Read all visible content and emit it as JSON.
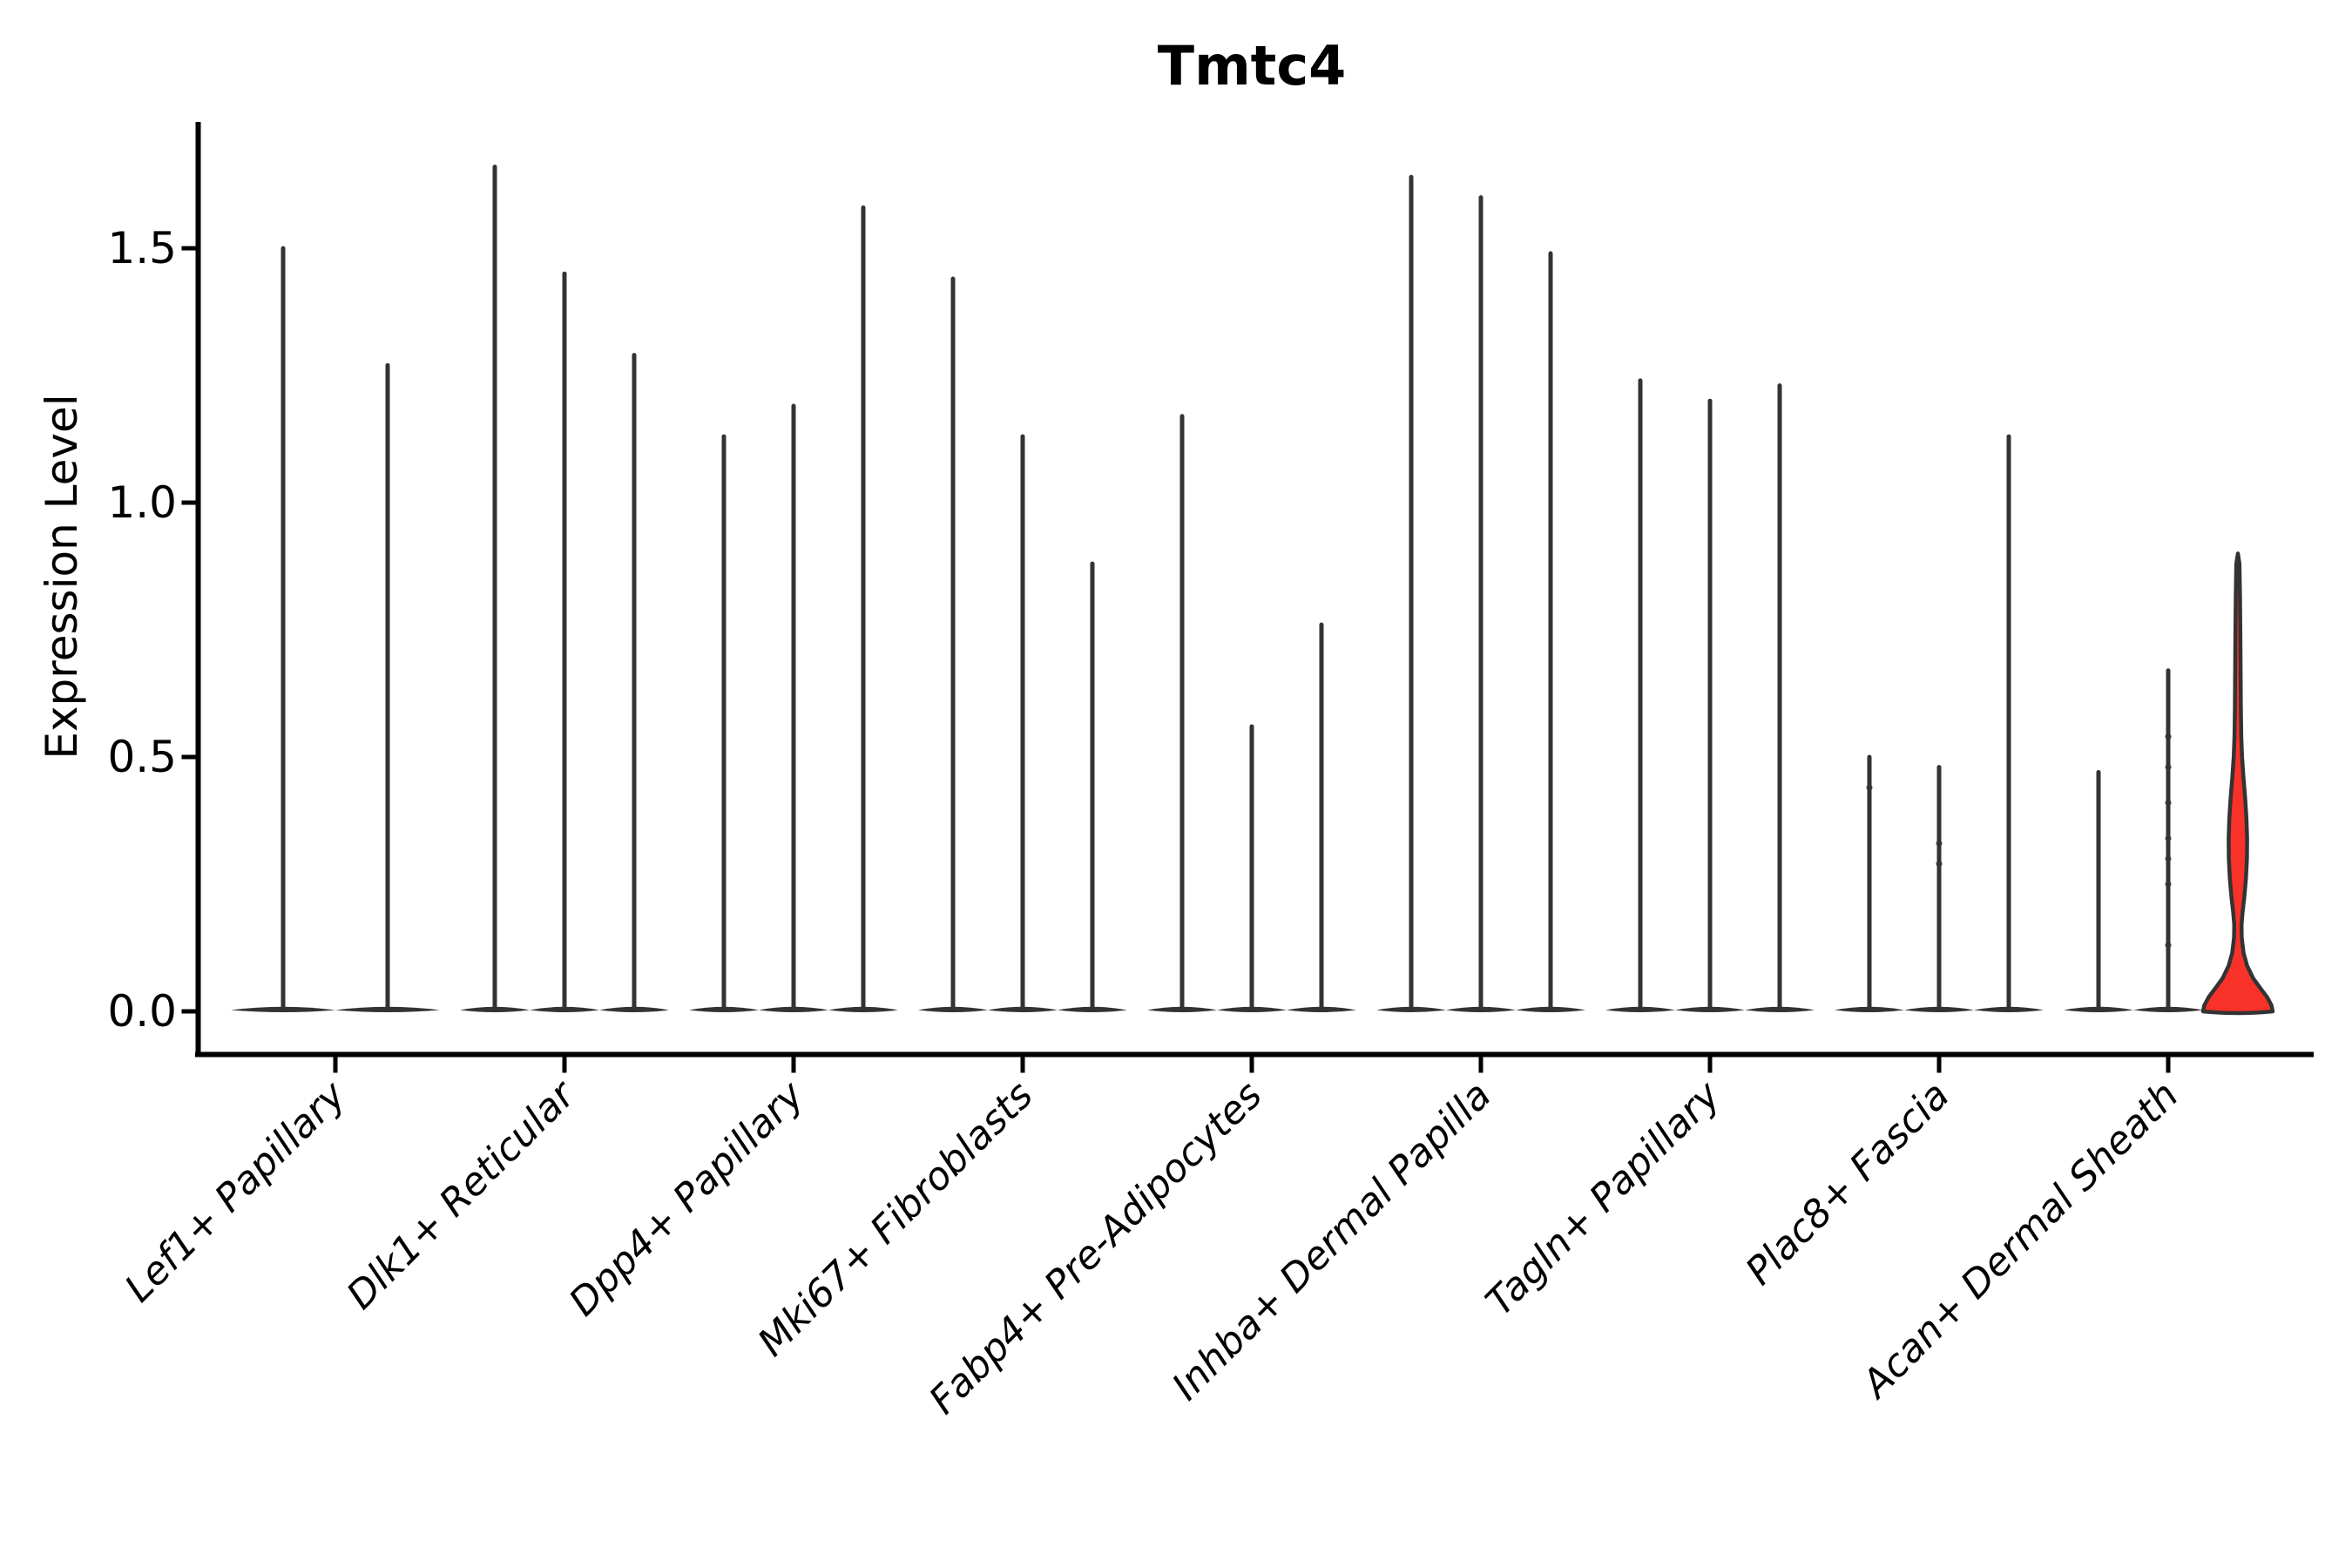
{
  "chart_data": {
    "type": "violin",
    "title": "Tmtc4",
    "ylabel": "Expression Level",
    "xlabel": "",
    "ylim": [
      -0.09,
      1.79
    ],
    "y_ticks": [
      0.0,
      0.5,
      1.0,
      1.5
    ],
    "grid": false,
    "legend": "none",
    "categories": [
      "Lef1+ Papillary",
      "Dlk1+ Reticular",
      "Dpp4+ Papillary",
      "Mki67+ Fibroblasts",
      "Fabp4+ Pre-Adipocytes",
      "Inhba+ Dermal Papilla",
      "Tagln+ Papillary",
      "Plac8+ Fascia",
      "Acan+ Dermal Sheath"
    ],
    "groups": [
      {
        "category": "Lef1+ Papillary",
        "violins": [
          {
            "max": 1.5,
            "halfwidth": 60
          },
          {
            "max": 1.27,
            "halfwidth": 60
          }
        ]
      },
      {
        "category": "Dlk1+ Reticular",
        "violins": [
          {
            "max": 1.66,
            "halfwidth": 40
          },
          {
            "max": 1.45,
            "halfwidth": 40
          },
          {
            "max": 1.29,
            "halfwidth": 40
          }
        ]
      },
      {
        "category": "Dpp4+ Papillary",
        "violins": [
          {
            "max": 1.13,
            "halfwidth": 40
          },
          {
            "max": 1.19,
            "halfwidth": 40
          },
          {
            "max": 1.58,
            "halfwidth": 40
          }
        ]
      },
      {
        "category": "Mki67+ Fibroblasts",
        "violins": [
          {
            "max": 1.44,
            "halfwidth": 40
          },
          {
            "max": 1.13,
            "halfwidth": 40
          },
          {
            "max": 0.88,
            "halfwidth": 40
          }
        ]
      },
      {
        "category": "Fabp4+ Pre-Adipocytes",
        "violins": [
          {
            "max": 1.17,
            "halfwidth": 40
          },
          {
            "max": 0.56,
            "halfwidth": 40
          },
          {
            "max": 0.76,
            "halfwidth": 40
          }
        ]
      },
      {
        "category": "Inhba+ Dermal Papilla",
        "violins": [
          {
            "max": 1.64,
            "halfwidth": 40
          },
          {
            "max": 1.6,
            "halfwidth": 40
          },
          {
            "max": 1.49,
            "halfwidth": 40
          }
        ]
      },
      {
        "category": "Tagln+ Papillary",
        "violins": [
          {
            "max": 1.24,
            "halfwidth": 40
          },
          {
            "max": 1.2,
            "halfwidth": 40
          },
          {
            "max": 1.23,
            "halfwidth": 40
          }
        ]
      },
      {
        "category": "Plac8+ Fascia",
        "violins": [
          {
            "max": 0.5,
            "halfwidth": 40,
            "dots": [
              0.44
            ]
          },
          {
            "max": 0.48,
            "halfwidth": 40,
            "dots": [
              0.33,
              0.29
            ]
          },
          {
            "max": 1.13,
            "halfwidth": 40
          }
        ]
      },
      {
        "category": "Acan+ Dermal Sheath",
        "violins": [
          {
            "max": 0.47,
            "halfwidth": 40
          },
          {
            "max": 0.67,
            "halfwidth": 40,
            "dots": [
              0.54,
              0.48,
              0.41,
              0.34,
              0.3,
              0.25,
              0.13
            ]
          },
          {
            "max": 0.9,
            "halfwidth": 40,
            "highlight": true,
            "profile": [
              [
                0.9,
                0.0
              ],
              [
                0.88,
                1.8
              ],
              [
                0.82,
                2.4
              ],
              [
                0.75,
                2.8
              ],
              [
                0.68,
                3.1
              ],
              [
                0.6,
                3.4
              ],
              [
                0.54,
                3.9
              ],
              [
                0.5,
                4.8
              ],
              [
                0.46,
                6.4
              ],
              [
                0.42,
                8.3
              ],
              [
                0.38,
                9.8
              ],
              [
                0.34,
                10.6
              ],
              [
                0.3,
                10.4
              ],
              [
                0.26,
                9.2
              ],
              [
                0.225,
                7.4
              ],
              [
                0.195,
                5.4
              ],
              [
                0.17,
                4.2
              ],
              [
                0.145,
                4.4
              ],
              [
                0.115,
                6.5
              ],
              [
                0.09,
                10.5
              ],
              [
                0.065,
                17.5
              ],
              [
                0.045,
                26.0
              ],
              [
                0.028,
                33.5
              ],
              [
                0.012,
                38.5
              ],
              [
                0.0,
                40.0
              ]
            ]
          }
        ]
      }
    ],
    "colors": {
      "violin_stroke": "#333333",
      "highlight_fill": "#f83229",
      "axis": "#000000",
      "text": "#000000",
      "background": "#ffffff"
    }
  }
}
